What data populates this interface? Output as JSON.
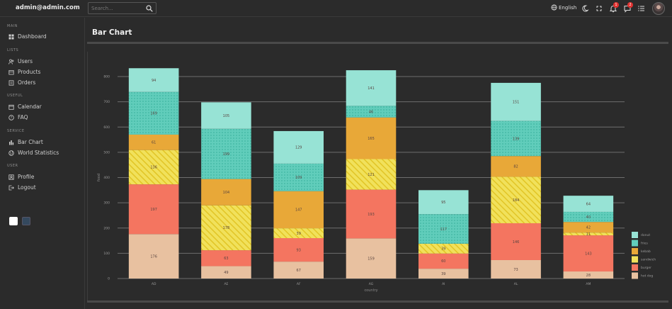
{
  "header": {
    "brand": "admin@admin.com",
    "search_placeholder": "Search...",
    "language": "English",
    "notifications_count": "1",
    "messages_count": "2"
  },
  "sidebar": {
    "sections": [
      {
        "title": "MAIN",
        "items": [
          {
            "label": "Dashboard",
            "icon": "dashboard-icon"
          }
        ]
      },
      {
        "title": "LISTS",
        "items": [
          {
            "label": "Users",
            "icon": "users-icon"
          },
          {
            "label": "Products",
            "icon": "products-icon"
          },
          {
            "label": "Orders",
            "icon": "orders-icon"
          }
        ]
      },
      {
        "title": "USEFUL",
        "items": [
          {
            "label": "Calendar",
            "icon": "calendar-icon"
          },
          {
            "label": "FAQ",
            "icon": "help-icon"
          }
        ]
      },
      {
        "title": "SERVICE",
        "items": [
          {
            "label": "Bar Chart",
            "icon": "bar-chart-icon"
          },
          {
            "label": "World Statistics",
            "icon": "globe-icon"
          }
        ]
      },
      {
        "title": "USER",
        "items": [
          {
            "label": "Profile",
            "icon": "profile-icon"
          },
          {
            "label": "Logout",
            "icon": "logout-icon"
          }
        ]
      }
    ],
    "theme_colors": [
      "#ffffff",
      "#34495e"
    ]
  },
  "page": {
    "title": "Bar Chart"
  },
  "chart_data": {
    "type": "bar",
    "stacked": true,
    "categories": [
      "AD",
      "AE",
      "AF",
      "AG",
      "AI",
      "AL",
      "AM"
    ],
    "xlabel": "country",
    "ylabel": "food",
    "ylim": [
      0,
      800
    ],
    "yticks": [
      0,
      100,
      200,
      300,
      400,
      500,
      600,
      700,
      800
    ],
    "grid": true,
    "legend_position": "bottom-right",
    "series": [
      {
        "name": "hot dog",
        "color": "#e8c1a0",
        "pattern": "none",
        "values": [
          176,
          49,
          67,
          159,
          39,
          73,
          28
        ]
      },
      {
        "name": "burger",
        "color": "#f47560",
        "pattern": "none",
        "values": [
          197,
          63,
          93,
          193,
          60,
          146,
          143
        ]
      },
      {
        "name": "sandwich",
        "color": "#f1e15b",
        "pattern": "lines",
        "values": [
          136,
          178,
          39,
          121,
          39,
          184,
          11
        ]
      },
      {
        "name": "kebab",
        "color": "#e8a838",
        "pattern": "none",
        "values": [
          61,
          104,
          147,
          165,
          0,
          82,
          42
        ]
      },
      {
        "name": "fries",
        "color": "#61cdbb",
        "pattern": "dots",
        "values": [
          169,
          199,
          109,
          46,
          117,
          139,
          40
        ]
      },
      {
        "name": "donut",
        "color": "#97e3d5",
        "pattern": "none",
        "values": [
          94,
          105,
          129,
          141,
          95,
          151,
          64
        ]
      }
    ]
  }
}
